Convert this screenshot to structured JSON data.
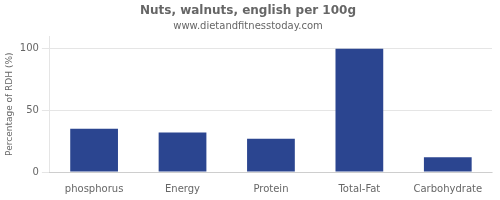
{
  "chart_data": {
    "type": "bar",
    "title": "Nuts, walnuts, english per 100g",
    "subtitle": "www.dietandfitnesstoday.com",
    "categories": [
      "phosphorus",
      "Energy",
      "Protein",
      "Total-Fat",
      "Carbohydrate"
    ],
    "values": [
      35,
      32,
      27,
      100,
      12
    ],
    "color": "#2b4590",
    "ylabel": "Percentage of RDH (%)",
    "ylim": [
      0,
      110
    ],
    "yticks": [
      0,
      50,
      100
    ],
    "grid": true
  }
}
